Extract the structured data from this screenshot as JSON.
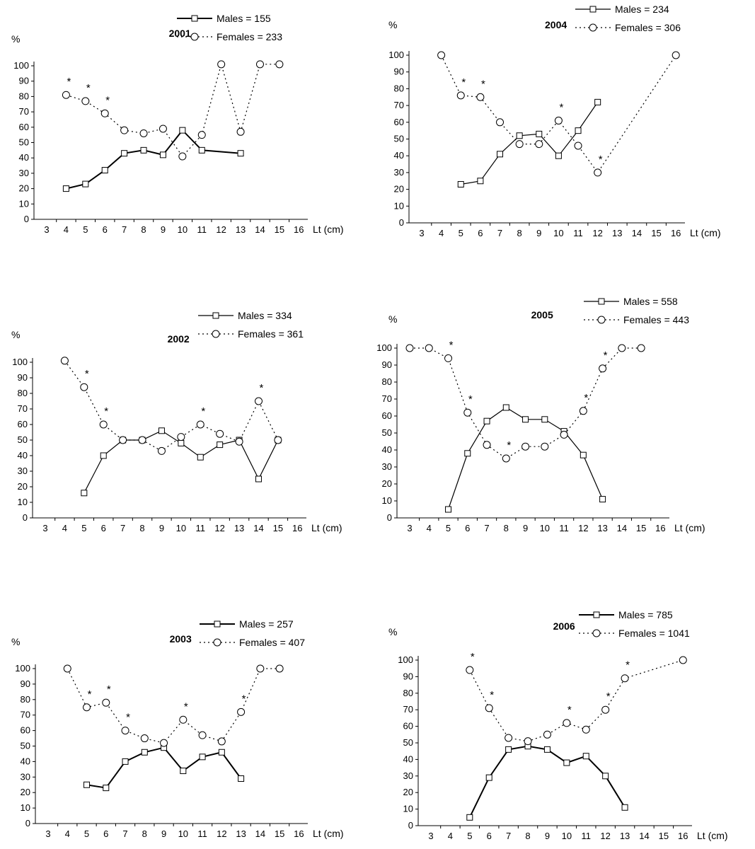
{
  "chart_data": [
    {
      "type": "line",
      "title": "2001",
      "ylabel": "%",
      "xlabel": "Lt  (cm)",
      "ylim": [
        0,
        100
      ],
      "xlim": [
        3,
        16
      ],
      "yticks": [
        0,
        10,
        20,
        30,
        40,
        50,
        60,
        70,
        80,
        90,
        100
      ],
      "xticks": [
        3,
        4,
        5,
        6,
        7,
        8,
        9,
        10,
        11,
        12,
        13,
        14,
        15,
        16
      ],
      "legend_position": "top-right",
      "asterisks_at": [
        4,
        5,
        6
      ],
      "series": [
        {
          "name": "Males = 155",
          "style": "solid-square",
          "bold": true,
          "x": [
            4,
            5,
            6,
            7,
            8,
            9,
            10,
            11,
            13
          ],
          "y": [
            20,
            23,
            32,
            43,
            45,
            42,
            58,
            45,
            43
          ]
        },
        {
          "name": "Females = 233",
          "style": "dotted-circle",
          "x": [
            4,
            5,
            6,
            7,
            8,
            9,
            10,
            11,
            12,
            13,
            14,
            15
          ],
          "y": [
            81,
            77,
            69,
            58,
            56,
            59,
            41,
            55,
            101,
            57,
            101,
            101
          ]
        }
      ]
    },
    {
      "type": "line",
      "title": "2004",
      "ylabel": "%",
      "xlabel": "Lt  (cm)",
      "ylim": [
        0,
        100
      ],
      "xlim": [
        3,
        16
      ],
      "yticks": [
        0,
        10,
        20,
        30,
        40,
        50,
        60,
        70,
        80,
        90,
        100
      ],
      "xticks": [
        3,
        4,
        5,
        6,
        7,
        8,
        9,
        10,
        11,
        12,
        13,
        14,
        15,
        16
      ],
      "legend_position": "top-right",
      "asterisks_at": [
        5,
        6,
        10,
        12
      ],
      "series": [
        {
          "name": "Males = 234",
          "style": "solid-square",
          "bold": false,
          "x": [
            5,
            6,
            7,
            8,
            9,
            10,
            11,
            12
          ],
          "y": [
            23,
            25,
            41,
            52,
            53,
            40,
            55,
            72
          ]
        },
        {
          "name": "Females = 306",
          "style": "dotted-circle",
          "x": [
            4,
            5,
            6,
            7,
            8,
            9,
            10,
            11,
            12,
            16
          ],
          "y": [
            100,
            76,
            75,
            60,
            47,
            47,
            61,
            46,
            30,
            100
          ]
        }
      ]
    },
    {
      "type": "line",
      "title": "2002",
      "ylabel": "%",
      "xlabel": "Lt  (cm)",
      "ylim": [
        0,
        100
      ],
      "xlim": [
        3,
        16
      ],
      "yticks": [
        0,
        10,
        20,
        30,
        40,
        50,
        60,
        70,
        80,
        90,
        100
      ],
      "xticks": [
        3,
        4,
        5,
        6,
        7,
        8,
        9,
        10,
        11,
        12,
        13,
        14,
        15,
        16
      ],
      "legend_position": "top-right",
      "asterisks_at": [
        5,
        6,
        11,
        14
      ],
      "series": [
        {
          "name": "Males = 334",
          "style": "solid-square",
          "bold": false,
          "x": [
            5,
            6,
            7,
            8,
            9,
            10,
            11,
            12,
            13,
            14,
            15
          ],
          "y": [
            16,
            40,
            50,
            50,
            56,
            48,
            39,
            47,
            50,
            25,
            50
          ]
        },
        {
          "name": "Females = 361",
          "style": "dotted-circle",
          "x": [
            4,
            5,
            6,
            7,
            8,
            9,
            10,
            11,
            12,
            13,
            14,
            15
          ],
          "y": [
            101,
            84,
            60,
            50,
            50,
            43,
            52,
            60,
            54,
            49,
            75,
            50
          ]
        }
      ]
    },
    {
      "type": "line",
      "title": "2005",
      "ylabel": "%",
      "xlabel": "Lt  (cm)",
      "ylim": [
        0,
        100
      ],
      "xlim": [
        3,
        16
      ],
      "yticks": [
        0,
        10,
        20,
        30,
        40,
        50,
        60,
        70,
        80,
        90,
        100
      ],
      "xticks": [
        3,
        4,
        5,
        6,
        7,
        8,
        9,
        10,
        11,
        12,
        13,
        14,
        15,
        16
      ],
      "legend_position": "top-right",
      "asterisks_at": [
        5,
        6,
        8,
        12,
        13
      ],
      "series": [
        {
          "name": "Males = 558",
          "style": "solid-square",
          "bold": false,
          "x": [
            5,
            6,
            7,
            8,
            9,
            10,
            11,
            12,
            13
          ],
          "y": [
            5,
            38,
            57,
            65,
            58,
            58,
            51,
            37,
            11
          ]
        },
        {
          "name": "Females = 443",
          "style": "dotted-circle",
          "x": [
            3,
            4,
            5,
            6,
            7,
            8,
            9,
            10,
            11,
            12,
            13,
            14,
            15
          ],
          "y": [
            100,
            100,
            94,
            62,
            43,
            35,
            42,
            42,
            49,
            63,
            88,
            100,
            100
          ]
        }
      ]
    },
    {
      "type": "line",
      "title": "2003",
      "ylabel": "%",
      "xlabel": "Lt  (cm)",
      "ylim": [
        0,
        100
      ],
      "xlim": [
        3,
        16
      ],
      "yticks": [
        0,
        10,
        20,
        30,
        40,
        50,
        60,
        70,
        80,
        90,
        100
      ],
      "xticks": [
        3,
        4,
        5,
        6,
        7,
        8,
        9,
        10,
        11,
        12,
        13,
        14,
        15,
        16
      ],
      "legend_position": "top-right",
      "asterisks_at": [
        5,
        6,
        7,
        10,
        13
      ],
      "series": [
        {
          "name": "Males = 257",
          "style": "solid-square",
          "bold": true,
          "x": [
            5,
            6,
            7,
            8,
            9,
            10,
            11,
            12,
            13
          ],
          "y": [
            25,
            23,
            40,
            46,
            49,
            34,
            43,
            46,
            29
          ]
        },
        {
          "name": "Females = 407",
          "style": "dotted-circle",
          "x": [
            4,
            5,
            6,
            7,
            8,
            9,
            10,
            11,
            12,
            13,
            14,
            15
          ],
          "y": [
            100,
            75,
            78,
            60,
            55,
            52,
            67,
            57,
            53,
            72,
            100,
            100
          ]
        }
      ]
    },
    {
      "type": "line",
      "title": "2006",
      "ylabel": "%",
      "xlabel": "Lt  (cm)",
      "ylim": [
        0,
        100
      ],
      "xlim": [
        3,
        16
      ],
      "yticks": [
        0,
        10,
        20,
        30,
        40,
        50,
        60,
        70,
        80,
        90,
        100
      ],
      "xticks": [
        3,
        4,
        5,
        6,
        7,
        8,
        9,
        10,
        11,
        12,
        13,
        14,
        15,
        16
      ],
      "legend_position": "top-right",
      "asterisks_at": [
        5,
        6,
        10,
        12,
        13
      ],
      "series": [
        {
          "name": "Males = 785",
          "style": "solid-square",
          "bold": true,
          "x": [
            5,
            6,
            7,
            8,
            9,
            10,
            11,
            12,
            13
          ],
          "y": [
            5,
            29,
            46,
            48,
            46,
            38,
            42,
            30,
            11
          ]
        },
        {
          "name": "Females = 1041",
          "style": "dotted-circle",
          "x": [
            5,
            6,
            7,
            8,
            9,
            10,
            11,
            12,
            13,
            16
          ],
          "y": [
            94,
            71,
            53,
            51,
            55,
            62,
            58,
            70,
            89,
            100
          ]
        }
      ]
    }
  ]
}
